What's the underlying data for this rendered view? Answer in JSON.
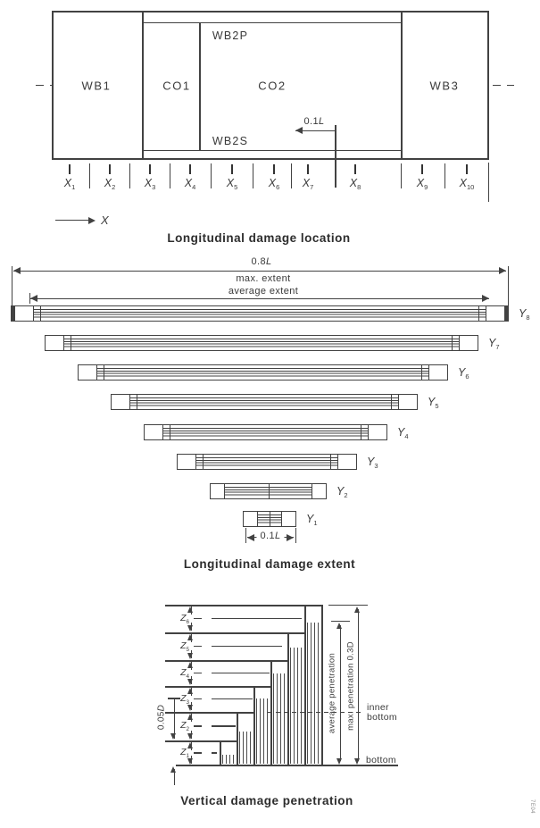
{
  "location": {
    "title": "Longitudinal damage location",
    "compartments": {
      "wb1": "WB1",
      "co1": "CO1",
      "co2": "CO2",
      "wb3": "WB3",
      "wb2p": "WB2P",
      "wb2s": "WB2S"
    },
    "dim_01L": {
      "value": "0.1",
      "unit": "L"
    },
    "x_axis_label": "X",
    "x_ticks": [
      {
        "base": "X",
        "sub": "1"
      },
      {
        "base": "X",
        "sub": "2"
      },
      {
        "base": "X",
        "sub": "3"
      },
      {
        "base": "X",
        "sub": "4"
      },
      {
        "base": "X",
        "sub": "5"
      },
      {
        "base": "X",
        "sub": "6"
      },
      {
        "base": "X",
        "sub": "7"
      },
      {
        "base": "X",
        "sub": "8"
      },
      {
        "base": "X",
        "sub": "9"
      },
      {
        "base": "X",
        "sub": "10"
      }
    ]
  },
  "extent": {
    "title": "Longitudinal damage extent",
    "dim_08L": {
      "value": "0.8",
      "unit": "L"
    },
    "max_extent_label": "max. extent",
    "avg_extent_label": "average extent",
    "dim_01L": {
      "value": "0.1",
      "unit": "L"
    },
    "bars": [
      {
        "base": "Y",
        "sub": "8"
      },
      {
        "base": "Y",
        "sub": "7"
      },
      {
        "base": "Y",
        "sub": "6"
      },
      {
        "base": "Y",
        "sub": "5"
      },
      {
        "base": "Y",
        "sub": "4"
      },
      {
        "base": "Y",
        "sub": "3"
      },
      {
        "base": "Y",
        "sub": "2"
      },
      {
        "base": "Y",
        "sub": "1"
      }
    ]
  },
  "penetration": {
    "title": "Vertical damage penetration",
    "dim_005D": {
      "value": "0.05",
      "unit": "D"
    },
    "z_labels": [
      {
        "base": "Z",
        "sub": "1"
      },
      {
        "base": "Z",
        "sub": "2"
      },
      {
        "base": "Z",
        "sub": "3"
      },
      {
        "base": "Z",
        "sub": "4"
      },
      {
        "base": "Z",
        "sub": "5"
      },
      {
        "base": "Z",
        "sub": "6"
      }
    ],
    "avg_pen_label": "average penetration",
    "max_pen_label": "max. penetration 0.3D",
    "inner_bottom_label": "inner bottom",
    "bottom_label": "bottom"
  },
  "corner_code": "7E04"
}
